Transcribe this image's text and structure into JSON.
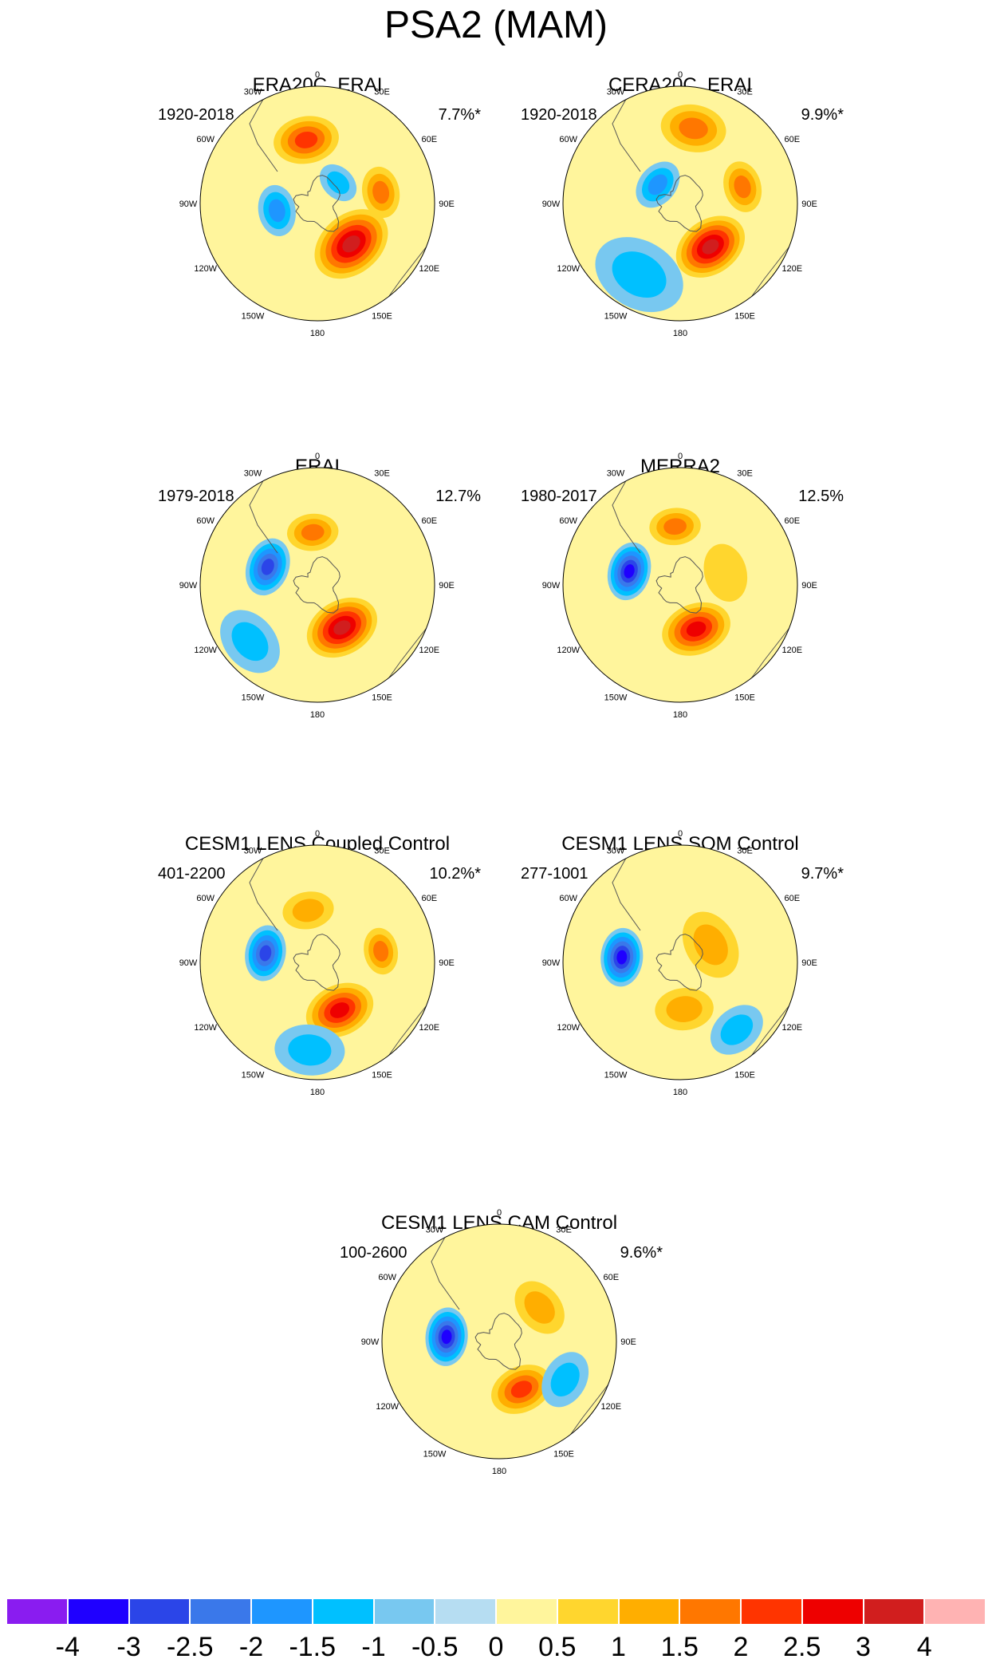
{
  "title": "PSA2 (MAM)",
  "colors": {
    "levels": [
      "#8a1cf0",
      "#1f00ff",
      "#2b45e8",
      "#3a78ea",
      "#1e96ff",
      "#00c0ff",
      "#78c8f0",
      "#b6ddf2",
      "#fff59c",
      "#ffd62e",
      "#ffae00",
      "#ff7700",
      "#ff3400",
      "#ee0000",
      "#d11e1e",
      "#ffb3b3"
    ],
    "coast": "#555555"
  },
  "colorbar": {
    "ticks": [
      "-4",
      "-3",
      "-2.5",
      "-2",
      "-1.5",
      "-1",
      "-0.5",
      "0",
      "0.5",
      "1",
      "1.5",
      "2",
      "2.5",
      "3",
      "4"
    ]
  },
  "lon_labels": [
    "0",
    "30E",
    "60E",
    "90E",
    "120E",
    "150E",
    "180",
    "150W",
    "120W",
    "90W",
    "60W",
    "30W"
  ],
  "chart_data": [
    {
      "type": "heatmap",
      "panel": "ERA20C_ERAI",
      "title": "ERA20C_ERAI",
      "period": "1920-2018",
      "variance": "7.7%*",
      "anomalies": [
        {
          "lon": -10,
          "lat_from_pole": 0.55,
          "spread": 0.28,
          "value": 2.0
        },
        {
          "lon": 80,
          "lat_from_pole": 0.55,
          "spread": 0.22,
          "value": 1.5
        },
        {
          "lon": 140,
          "lat_from_pole": 0.45,
          "spread": 0.35,
          "value": 3.0
        },
        {
          "lon": -100,
          "lat_from_pole": 0.35,
          "spread": 0.22,
          "value": -1.5
        },
        {
          "lon": 45,
          "lat_from_pole": 0.25,
          "spread": 0.18,
          "value": -1.0
        }
      ]
    },
    {
      "type": "heatmap",
      "panel": "CERA20C_ERAI",
      "title": "CERA20C_ERAI",
      "period": "1920-2018",
      "variance": "9.9%*",
      "anomalies": [
        {
          "lon": 10,
          "lat_from_pole": 0.65,
          "spread": 0.28,
          "value": 1.5
        },
        {
          "lon": 75,
          "lat_from_pole": 0.55,
          "spread": 0.22,
          "value": 1.5
        },
        {
          "lon": 145,
          "lat_from_pole": 0.45,
          "spread": 0.32,
          "value": 3.0
        },
        {
          "lon": -50,
          "lat_from_pole": 0.25,
          "spread": 0.22,
          "value": -1.5
        },
        {
          "lon": -150,
          "lat_from_pole": 0.7,
          "spread": 0.4,
          "value": -1.0
        }
      ]
    },
    {
      "type": "heatmap",
      "panel": "ERAI",
      "title": "ERAI",
      "period": "1979-2018",
      "variance": "12.7%",
      "anomalies": [
        {
          "lon": -70,
          "lat_from_pole": 0.45,
          "spread": 0.25,
          "value": -2.5
        },
        {
          "lon": -5,
          "lat_from_pole": 0.45,
          "spread": 0.22,
          "value": 1.5
        },
        {
          "lon": 150,
          "lat_from_pole": 0.42,
          "spread": 0.32,
          "value": 3.0
        },
        {
          "lon": -130,
          "lat_from_pole": 0.75,
          "spread": 0.3,
          "value": -1.0
        }
      ]
    },
    {
      "type": "heatmap",
      "panel": "MERRA2",
      "title": "MERRA2",
      "period": "1980-2017",
      "variance": "12.5%",
      "anomalies": [
        {
          "lon": -75,
          "lat_from_pole": 0.45,
          "spread": 0.25,
          "value": -3.0
        },
        {
          "lon": -5,
          "lat_from_pole": 0.5,
          "spread": 0.22,
          "value": 1.5
        },
        {
          "lon": 160,
          "lat_from_pole": 0.4,
          "spread": 0.3,
          "value": 2.5
        },
        {
          "lon": 75,
          "lat_from_pole": 0.4,
          "spread": 0.25,
          "value": 0.5
        }
      ]
    },
    {
      "type": "heatmap",
      "panel": "CESM1 LENS Coupled Control",
      "title": "CESM1 LENS Coupled Control",
      "period": "401-2200",
      "variance": "10.2%*",
      "anomalies": [
        {
          "lon": -80,
          "lat_from_pole": 0.45,
          "spread": 0.24,
          "value": -2.5
        },
        {
          "lon": -10,
          "lat_from_pole": 0.45,
          "spread": 0.22,
          "value": 1.0
        },
        {
          "lon": 80,
          "lat_from_pole": 0.55,
          "spread": 0.2,
          "value": 1.5
        },
        {
          "lon": 155,
          "lat_from_pole": 0.45,
          "spread": 0.3,
          "value": 2.5
        },
        {
          "lon": -175,
          "lat_from_pole": 0.75,
          "spread": 0.3,
          "value": -1.0
        }
      ]
    },
    {
      "type": "heatmap",
      "panel": "CESM1 LENS SOM Control",
      "title": "CESM1 LENS SOM Control",
      "period": "277-1001",
      "variance": "9.7%*",
      "anomalies": [
        {
          "lon": -85,
          "lat_from_pole": 0.5,
          "spread": 0.25,
          "value": -3.0
        },
        {
          "lon": 60,
          "lat_from_pole": 0.3,
          "spread": 0.3,
          "value": 1.0
        },
        {
          "lon": 175,
          "lat_from_pole": 0.4,
          "spread": 0.25,
          "value": 1.0
        },
        {
          "lon": 140,
          "lat_from_pole": 0.75,
          "spread": 0.25,
          "value": -1.0
        }
      ]
    },
    {
      "type": "heatmap",
      "panel": "CESM1 LENS CAM Control",
      "title": "CESM1 LENS CAM Control",
      "period": "100-2600",
      "variance": "9.6%*",
      "anomalies": [
        {
          "lon": -85,
          "lat_from_pole": 0.45,
          "spread": 0.25,
          "value": -3.0
        },
        {
          "lon": 155,
          "lat_from_pole": 0.45,
          "spread": 0.27,
          "value": 2.0
        },
        {
          "lon": 120,
          "lat_from_pole": 0.65,
          "spread": 0.25,
          "value": -1.0
        },
        {
          "lon": 50,
          "lat_from_pole": 0.45,
          "spread": 0.25,
          "value": 1.0
        }
      ]
    }
  ]
}
